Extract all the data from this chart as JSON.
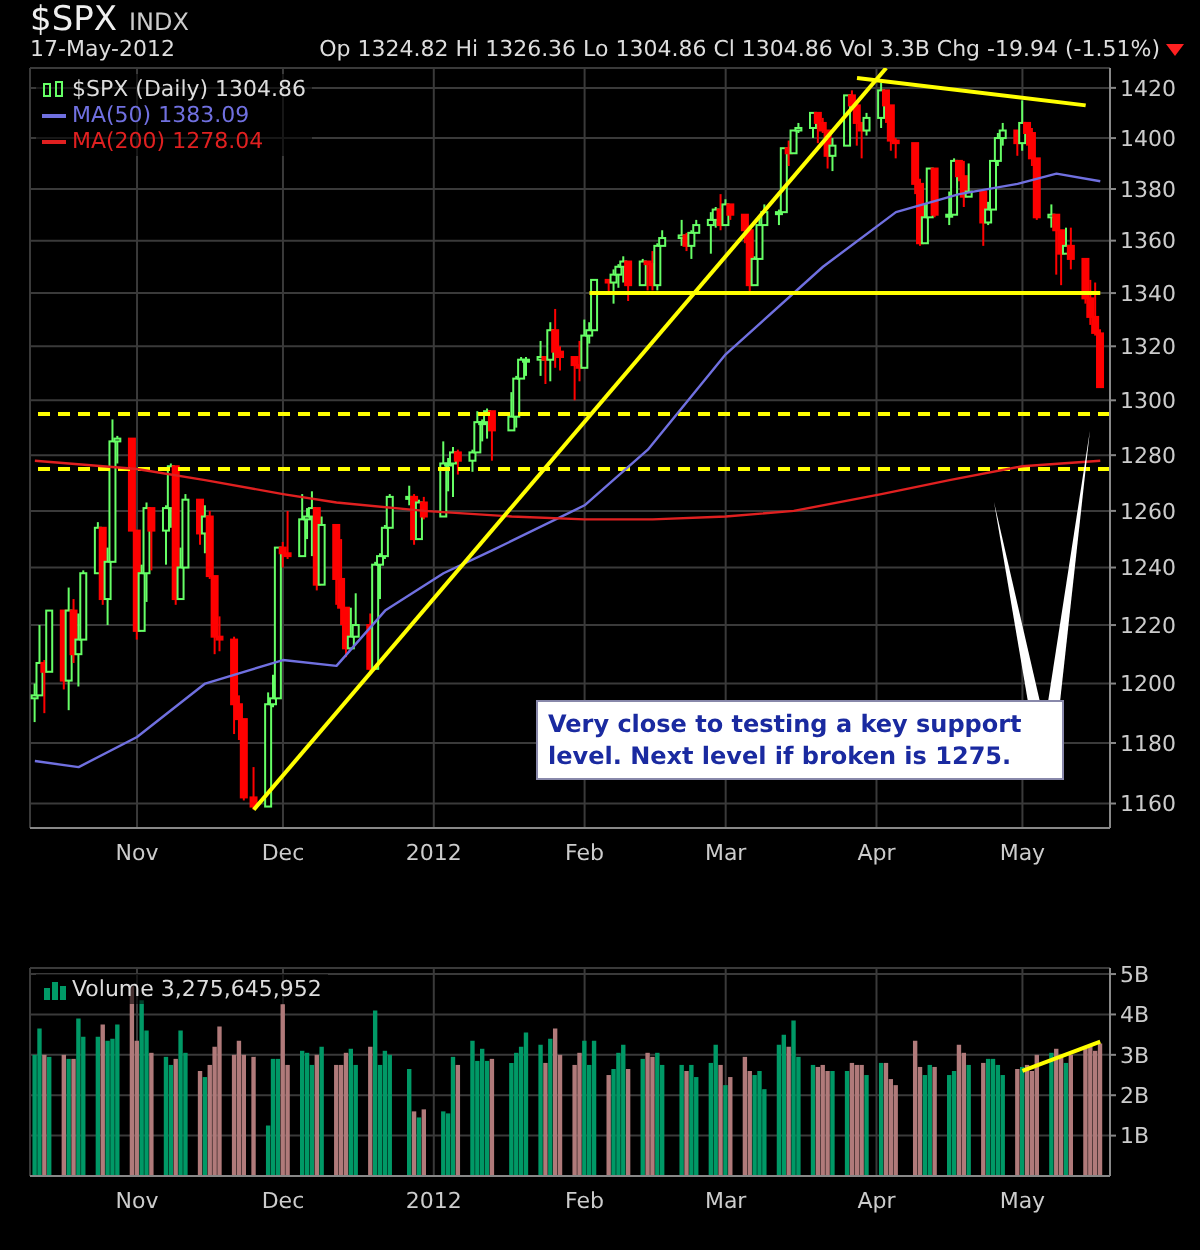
{
  "chart_data": [
    {
      "type": "candlestick",
      "title": "$SPX",
      "subtitle": "INDX",
      "annotations": [
        "17-May-2012",
        "Op 1324.82 Hi 1326.36 Lo 1304.86 Cl 1304.86 Vol 3.3B Chg -19.94 (-1.51%)",
        "Very close to testing a key support level. Next level if broken is 1275."
      ],
      "log": true,
      "grid": true,
      "legend": "top left",
      "xlim": [
        "2011-10-10",
        "2012-05-19"
      ],
      "xticks": [
        {
          "value": "2011-11-01",
          "label": "Nov"
        },
        {
          "value": "2011-12-01",
          "label": "Dec"
        },
        {
          "value": "2012-01-01",
          "label": "2012"
        },
        {
          "value": "2012-02-01",
          "label": "Feb"
        },
        {
          "value": "2012-03-01",
          "label": "Mar"
        },
        {
          "value": "2012-04-01",
          "label": "Apr"
        },
        {
          "value": "2012-05-01",
          "label": "May"
        }
      ],
      "ylim": [
        1152,
        1428
      ],
      "yticks": [
        1160,
        1180,
        1200,
        1220,
        1240,
        1260,
        1280,
        1300,
        1320,
        1340,
        1360,
        1380,
        1400,
        1420
      ],
      "ref_lines": [
        {
          "axis": "y",
          "value": 1295,
          "color": "#ffff00",
          "line_style": "dashed"
        },
        {
          "axis": "y",
          "value": 1275,
          "color": "#ffff00",
          "line_style": "dashed"
        }
      ],
      "series": [
        {
          "type": "candlestick",
          "name": "$SPX (Daily) 1304.86",
          "x": [
            "2011-10-11",
            "2011-10-12",
            "2011-10-13",
            "2011-10-14",
            "2011-10-17",
            "2011-10-18",
            "2011-10-19",
            "2011-10-20",
            "2011-10-21",
            "2011-10-24",
            "2011-10-25",
            "2011-10-26",
            "2011-10-27",
            "2011-10-28",
            "2011-10-31",
            "2011-11-01",
            "2011-11-02",
            "2011-11-03",
            "2011-11-04",
            "2011-11-07",
            "2011-11-08",
            "2011-11-09",
            "2011-11-10",
            "2011-11-11",
            "2011-11-14",
            "2011-11-15",
            "2011-11-16",
            "2011-11-17",
            "2011-11-18",
            "2011-11-21",
            "2011-11-22",
            "2011-11-23",
            "2011-11-25",
            "2011-11-28",
            "2011-11-29",
            "2011-11-30",
            "2011-12-01",
            "2011-12-02",
            "2011-12-05",
            "2011-12-06",
            "2011-12-07",
            "2011-12-08",
            "2011-12-09",
            "2011-12-12",
            "2011-12-13",
            "2011-12-14",
            "2011-12-15",
            "2011-12-16",
            "2011-12-19",
            "2011-12-20",
            "2011-12-21",
            "2011-12-22",
            "2011-12-23",
            "2011-12-27",
            "2011-12-28",
            "2011-12-29",
            "2011-12-30",
            "2012-01-03",
            "2012-01-04",
            "2012-01-05",
            "2012-01-06",
            "2012-01-09",
            "2012-01-10",
            "2012-01-11",
            "2012-01-12",
            "2012-01-13",
            "2012-01-17",
            "2012-01-18",
            "2012-01-19",
            "2012-01-20",
            "2012-01-23",
            "2012-01-24",
            "2012-01-25",
            "2012-01-26",
            "2012-01-27",
            "2012-01-30",
            "2012-01-31",
            "2012-02-01",
            "2012-02-02",
            "2012-02-03",
            "2012-02-06",
            "2012-02-07",
            "2012-02-08",
            "2012-02-09",
            "2012-02-10",
            "2012-02-13",
            "2012-02-14",
            "2012-02-15",
            "2012-02-16",
            "2012-02-17",
            "2012-02-21",
            "2012-02-22",
            "2012-02-23",
            "2012-02-24",
            "2012-02-27",
            "2012-02-28",
            "2012-02-29",
            "2012-03-01",
            "2012-03-02",
            "2012-03-05",
            "2012-03-06",
            "2012-03-07",
            "2012-03-08",
            "2012-03-09",
            "2012-03-12",
            "2012-03-13",
            "2012-03-14",
            "2012-03-15",
            "2012-03-16",
            "2012-03-19",
            "2012-03-20",
            "2012-03-21",
            "2012-03-22",
            "2012-03-23",
            "2012-03-26",
            "2012-03-27",
            "2012-03-28",
            "2012-03-29",
            "2012-03-30",
            "2012-04-02",
            "2012-04-03",
            "2012-04-04",
            "2012-04-05",
            "2012-04-09",
            "2012-04-10",
            "2012-04-11",
            "2012-04-12",
            "2012-04-13",
            "2012-04-16",
            "2012-04-17",
            "2012-04-18",
            "2012-04-19",
            "2012-04-20",
            "2012-04-23",
            "2012-04-24",
            "2012-04-25",
            "2012-04-26",
            "2012-04-27",
            "2012-04-30",
            "2012-05-01",
            "2012-05-02",
            "2012-05-03",
            "2012-05-04",
            "2012-05-07",
            "2012-05-08",
            "2012-05-09",
            "2012-05-10",
            "2012-05-11",
            "2012-05-14",
            "2012-05-15",
            "2012-05-16",
            "2012-05-17"
          ],
          "ohlc": [
            [
              1195,
              1200,
              1187,
              1196
            ],
            [
              1196,
              1220,
              1196,
              1207
            ],
            [
              1207,
              1208,
              1190,
              1204
            ],
            [
              1204,
              1225,
              1204,
              1225
            ],
            [
              1225,
              1225,
              1198,
              1201
            ],
            [
              1201,
              1233,
              1191,
              1225
            ],
            [
              1225,
              1229,
              1207,
              1210
            ],
            [
              1210,
              1224,
              1199,
              1215
            ],
            [
              1215,
              1239,
              1215,
              1238
            ],
            [
              1238,
              1256,
              1238,
              1254
            ],
            [
              1254,
              1254,
              1227,
              1229
            ],
            [
              1229,
              1247,
              1220,
              1242
            ],
            [
              1242,
              1293,
              1242,
              1285
            ],
            [
              1285,
              1287,
              1277,
              1286
            ],
            [
              1286,
              1286,
              1253,
              1253
            ],
            [
              1253,
              1253,
              1215,
              1218
            ],
            [
              1218,
              1241,
              1218,
              1238
            ],
            [
              1238,
              1263,
              1228,
              1261
            ],
            [
              1261,
              1261,
              1239,
              1253
            ],
            [
              1253,
              1262,
              1241,
              1261
            ],
            [
              1261,
              1277,
              1254,
              1276
            ],
            [
              1276,
              1276,
              1227,
              1229
            ],
            [
              1229,
              1247,
              1229,
              1240
            ],
            [
              1240,
              1266,
              1240,
              1264
            ],
            [
              1264,
              1264,
              1248,
              1252
            ],
            [
              1252,
              1262,
              1245,
              1258
            ],
            [
              1258,
              1260,
              1236,
              1237
            ],
            [
              1237,
              1237,
              1210,
              1216
            ],
            [
              1216,
              1223,
              1211,
              1215
            ],
            [
              1215,
              1216,
              1183,
              1193
            ],
            [
              1193,
              1196,
              1181,
              1188
            ],
            [
              1188,
              1188,
              1161,
              1162
            ],
            [
              1162,
              1172,
              1158,
              1159
            ],
            [
              1159,
              1197,
              1159,
              1193
            ],
            [
              1193,
              1203,
              1192,
              1195
            ],
            [
              1195,
              1247,
              1195,
              1247
            ],
            [
              1247,
              1249,
              1240,
              1245
            ],
            [
              1245,
              1260,
              1243,
              1244
            ],
            [
              1244,
              1266,
              1244,
              1257
            ],
            [
              1257,
              1261,
              1250,
              1258
            ],
            [
              1258,
              1267,
              1244,
              1261
            ],
            [
              1261,
              1261,
              1232,
              1234
            ],
            [
              1234,
              1258,
              1234,
              1255
            ],
            [
              1255,
              1255,
              1227,
              1236
            ],
            [
              1236,
              1250,
              1220,
              1226
            ],
            [
              1226,
              1226,
              1209,
              1212
            ],
            [
              1212,
              1226,
              1212,
              1216
            ],
            [
              1216,
              1231,
              1216,
              1220
            ],
            [
              1220,
              1224,
              1203,
              1205
            ],
            [
              1205,
              1242,
              1205,
              1241
            ],
            [
              1241,
              1245,
              1229,
              1244
            ],
            [
              1244,
              1255,
              1243,
              1254
            ],
            [
              1254,
              1266,
              1254,
              1265
            ],
            [
              1265,
              1269,
              1262,
              1265
            ],
            [
              1265,
              1266,
              1248,
              1250
            ],
            [
              1250,
              1264,
              1250,
              1263
            ],
            [
              1263,
              1265,
              1257,
              1258
            ],
            [
              1258,
              1285,
              1258,
              1277
            ],
            [
              1277,
              1279,
              1267,
              1277
            ],
            [
              1277,
              1283,
              1265,
              1281
            ],
            [
              1281,
              1282,
              1273,
              1278
            ],
            [
              1278,
              1282,
              1274,
              1281
            ],
            [
              1281,
              1296,
              1281,
              1292
            ],
            [
              1292,
              1293,
              1285,
              1292
            ],
            [
              1292,
              1297,
              1286,
              1296
            ],
            [
              1296,
              1296,
              1278,
              1289
            ],
            [
              1289,
              1303,
              1289,
              1294
            ],
            [
              1294,
              1309,
              1290,
              1308
            ],
            [
              1308,
              1316,
              1308,
              1315
            ],
            [
              1315,
              1316,
              1309,
              1315
            ],
            [
              1315,
              1322,
              1309,
              1316
            ],
            [
              1316,
              1316,
              1306,
              1315
            ],
            [
              1315,
              1329,
              1307,
              1326
            ],
            [
              1326,
              1334,
              1312,
              1318
            ],
            [
              1318,
              1320,
              1311,
              1316
            ],
            [
              1316,
              1316,
              1300,
              1313
            ],
            [
              1313,
              1322,
              1307,
              1312
            ],
            [
              1312,
              1330,
              1312,
              1324
            ],
            [
              1324,
              1329,
              1321,
              1326
            ],
            [
              1326,
              1345,
              1326,
              1345
            ],
            [
              1345,
              1345,
              1340,
              1344
            ],
            [
              1344,
              1349,
              1336,
              1347
            ],
            [
              1347,
              1351,
              1342,
              1350
            ],
            [
              1350,
              1354,
              1344,
              1352
            ],
            [
              1352,
              1352,
              1337,
              1343
            ],
            [
              1343,
              1353,
              1343,
              1352
            ],
            [
              1352,
              1352,
              1341,
              1351
            ],
            [
              1351,
              1356,
              1341,
              1343
            ],
            [
              1343,
              1359,
              1341,
              1358
            ],
            [
              1358,
              1364,
              1358,
              1361
            ],
            [
              1361,
              1368,
              1358,
              1362
            ],
            [
              1362,
              1363,
              1356,
              1358
            ],
            [
              1358,
              1364,
              1353,
              1363
            ],
            [
              1363,
              1368,
              1363,
              1366
            ],
            [
              1366,
              1371,
              1355,
              1368
            ],
            [
              1368,
              1373,
              1365,
              1372
            ],
            [
              1372,
              1378,
              1364,
              1366
            ],
            [
              1366,
              1376,
              1366,
              1374
            ],
            [
              1374,
              1374,
              1368,
              1370
            ],
            [
              1370,
              1370,
              1359,
              1364
            ],
            [
              1364,
              1364,
              1340,
              1343
            ],
            [
              1343,
              1354,
              1343,
              1353
            ],
            [
              1353,
              1369,
              1353,
              1366
            ],
            [
              1366,
              1374,
              1366,
              1371
            ],
            [
              1371,
              1372,
              1366,
              1371
            ],
            [
              1371,
              1396,
              1371,
              1396
            ],
            [
              1396,
              1399,
              1389,
              1394
            ],
            [
              1394,
              1403,
              1394,
              1403
            ],
            [
              1403,
              1406,
              1402,
              1404
            ],
            [
              1404,
              1410,
              1400,
              1410
            ],
            [
              1410,
              1410,
              1398,
              1406
            ],
            [
              1406,
              1408,
              1402,
              1403
            ],
            [
              1403,
              1403,
              1388,
              1393
            ],
            [
              1393,
              1400,
              1387,
              1397
            ],
            [
              1397,
              1417,
              1397,
              1417
            ],
            [
              1417,
              1419,
              1412,
              1413
            ],
            [
              1413,
              1414,
              1397,
              1406
            ],
            [
              1406,
              1406,
              1392,
              1403
            ],
            [
              1403,
              1410,
              1401,
              1408
            ],
            [
              1408,
              1422,
              1404,
              1419
            ],
            [
              1419,
              1419,
              1406,
              1413
            ],
            [
              1413,
              1413,
              1395,
              1399
            ],
            [
              1399,
              1400,
              1392,
              1398
            ],
            [
              1398,
              1398,
              1378,
              1382
            ],
            [
              1382,
              1384,
              1358,
              1359
            ],
            [
              1359,
              1374,
              1359,
              1369
            ],
            [
              1369,
              1388,
              1369,
              1388
            ],
            [
              1388,
              1388,
              1369,
              1370
            ],
            [
              1370,
              1379,
              1366,
              1370
            ],
            [
              1370,
              1392,
              1370,
              1391
            ],
            [
              1391,
              1391,
              1383,
              1385
            ],
            [
              1385,
              1391,
              1373,
              1377
            ],
            [
              1377,
              1390,
              1377,
              1379
            ],
            [
              1379,
              1379,
              1358,
              1367
            ],
            [
              1367,
              1375,
              1366,
              1372
            ],
            [
              1372,
              1391,
              1372,
              1391
            ],
            [
              1391,
              1402,
              1389,
              1400
            ],
            [
              1400,
              1406,
              1397,
              1403
            ],
            [
              1403,
              1403,
              1393,
              1398
            ],
            [
              1398,
              1415,
              1395,
              1406
            ],
            [
              1406,
              1406,
              1397,
              1402
            ],
            [
              1402,
              1404,
              1389,
              1392
            ],
            [
              1392,
              1392,
              1368,
              1369
            ],
            [
              1369,
              1374,
              1365,
              1370
            ],
            [
              1370,
              1370,
              1347,
              1364
            ],
            [
              1364,
              1364,
              1343,
              1355
            ],
            [
              1355,
              1365,
              1355,
              1358
            ],
            [
              1358,
              1365,
              1349,
              1353
            ],
            [
              1353,
              1353,
              1336,
              1338
            ],
            [
              1338,
              1345,
              1328,
              1331
            ],
            [
              1331,
              1344,
              1324,
              1325
            ],
            [
              1324.82,
              1326.36,
              1304.86,
              1304.86
            ]
          ],
          "colors": [
            "#66ff66",
            "#66ff66",
            "#ff0000",
            "#66ff66",
            "#ff0000",
            "#66ff66",
            "#ff0000",
            "#66ff66",
            "#66ff66",
            "#66ff66",
            "#ff0000",
            "#66ff66",
            "#66ff66",
            "#66ff66",
            "#ff0000",
            "#ff0000",
            "#66ff66",
            "#66ff66",
            "#ff0000",
            "#66ff66",
            "#66ff66",
            "#ff0000",
            "#66ff66",
            "#66ff66",
            "#ff0000",
            "#66ff66",
            "#ff0000",
            "#ff0000",
            "#ff0000",
            "#ff0000",
            "#ff0000",
            "#ff0000",
            "#ff0000",
            "#66ff66",
            "#66ff66",
            "#66ff66",
            "#ff0000",
            "#ff0000",
            "#66ff66",
            "#66ff66",
            "#66ff66",
            "#ff0000",
            "#66ff66",
            "#ff0000",
            "#ff0000",
            "#ff0000",
            "#66ff66",
            "#66ff66",
            "#ff0000",
            "#66ff66",
            "#66ff66",
            "#66ff66",
            "#66ff66",
            "#66ff66",
            "#ff0000",
            "#66ff66",
            "#ff0000",
            "#66ff66",
            "#66ff66",
            "#66ff66",
            "#ff0000",
            "#66ff66",
            "#66ff66",
            "#66ff66",
            "#66ff66",
            "#ff0000",
            "#66ff66",
            "#66ff66",
            "#66ff66",
            "#66ff66",
            "#66ff66",
            "#ff0000",
            "#66ff66",
            "#ff0000",
            "#ff0000",
            "#ff0000",
            "#ff0000",
            "#66ff66",
            "#66ff66",
            "#66ff66",
            "#ff0000",
            "#66ff66",
            "#66ff66",
            "#66ff66",
            "#ff0000",
            "#66ff66",
            "#ff0000",
            "#ff0000",
            "#66ff66",
            "#66ff66",
            "#66ff66",
            "#ff0000",
            "#66ff66",
            "#66ff66",
            "#66ff66",
            "#66ff66",
            "#ff0000",
            "#66ff66",
            "#ff0000",
            "#ff0000",
            "#ff0000",
            "#66ff66",
            "#66ff66",
            "#66ff66",
            "#66ff66",
            "#66ff66",
            "#ff0000",
            "#66ff66",
            "#66ff66",
            "#66ff66",
            "#ff0000",
            "#ff0000",
            "#ff0000",
            "#66ff66",
            "#66ff66",
            "#ff0000",
            "#ff0000",
            "#ff0000",
            "#66ff66",
            "#66ff66",
            "#ff0000",
            "#ff0000",
            "#ff0000",
            "#ff0000",
            "#ff0000",
            "#66ff66",
            "#66ff66",
            "#ff0000",
            "#66ff66",
            "#66ff66",
            "#ff0000",
            "#ff0000",
            "#66ff66",
            "#ff0000",
            "#66ff66",
            "#66ff66",
            "#66ff66",
            "#66ff66",
            "#ff0000",
            "#66ff66",
            "#ff0000",
            "#ff0000",
            "#ff0000",
            "#66ff66",
            "#ff0000",
            "#ff0000",
            "#66ff66",
            "#ff0000",
            "#ff0000",
            "#ff0000",
            "#ff0000",
            "#ff0000"
          ]
        },
        {
          "type": "line",
          "name": "MA(50) 1383.09",
          "color": "#7070e0",
          "x": [
            "2011-10-11",
            "2011-10-20",
            "2011-11-01",
            "2011-11-15",
            "2011-12-01",
            "2011-12-12",
            "2011-12-22",
            "2012-01-03",
            "2012-01-13",
            "2012-02-01",
            "2012-02-14",
            "2012-03-01",
            "2012-03-21",
            "2012-04-05",
            "2012-04-18",
            "2012-04-30",
            "2012-05-08",
            "2012-05-17"
          ],
          "values": [
            1174,
            1172,
            1182,
            1200,
            1208,
            1206,
            1225,
            1238,
            1246,
            1262,
            1282,
            1317,
            1350,
            1371,
            1378,
            1382,
            1386,
            1383
          ]
        },
        {
          "type": "line",
          "name": "MA(200) 1278.04",
          "color": "#e02020",
          "x": [
            "2011-10-11",
            "2011-11-01",
            "2011-11-15",
            "2011-12-01",
            "2011-12-12",
            "2011-12-30",
            "2012-01-17",
            "2012-02-01",
            "2012-02-15",
            "2012-03-01",
            "2012-03-15",
            "2012-04-02",
            "2012-04-16",
            "2012-05-01",
            "2012-05-17"
          ],
          "values": [
            1278,
            1275,
            1271,
            1266,
            1263,
            1260,
            1258,
            1257,
            1257,
            1258,
            1260,
            1266,
            1271,
            1276,
            1278
          ]
        },
        {
          "type": "line",
          "color": "#ffff00",
          "x": [
            "2011-11-25",
            "2012-04-03"
          ],
          "values": [
            1158,
            1428
          ]
        },
        {
          "type": "line",
          "color": "#ffff00",
          "x": [
            "2012-02-02",
            "2012-05-17"
          ],
          "values": [
            1340,
            1340
          ]
        },
        {
          "type": "line",
          "color": "#ffff00",
          "x": [
            "2012-03-28",
            "2012-05-14"
          ],
          "values": [
            1424,
            1413
          ]
        }
      ]
    },
    {
      "type": "bar",
      "grid": true,
      "legend": "top left",
      "xlim": [
        "2011-10-10",
        "2012-05-19"
      ],
      "xticks": [
        {
          "value": "2011-11-01",
          "label": "Nov"
        },
        {
          "value": "2011-12-01",
          "label": "Dec"
        },
        {
          "value": "2012-01-01",
          "label": "2012"
        },
        {
          "value": "2012-02-01",
          "label": "Feb"
        },
        {
          "value": "2012-03-01",
          "label": "Mar"
        },
        {
          "value": "2012-04-01",
          "label": "Apr"
        },
        {
          "value": "2012-05-01",
          "label": "May"
        }
      ],
      "ylim": [
        0,
        5.15
      ],
      "yticks": [
        {
          "value": 1,
          "label": "1B"
        },
        {
          "value": 2,
          "label": "2B"
        },
        {
          "value": 3,
          "label": "3B"
        },
        {
          "value": 4,
          "label": "4B"
        },
        {
          "value": 5,
          "label": "5B"
        }
      ],
      "series": [
        {
          "type": "bar",
          "name": "Volume 3,275,645,952",
          "x": [
            "2011-10-11",
            "2011-10-12",
            "2011-10-13",
            "2011-10-14",
            "2011-10-17",
            "2011-10-18",
            "2011-10-19",
            "2011-10-20",
            "2011-10-21",
            "2011-10-24",
            "2011-10-25",
            "2011-10-26",
            "2011-10-27",
            "2011-10-28",
            "2011-10-31",
            "2011-11-01",
            "2011-11-02",
            "2011-11-03",
            "2011-11-04",
            "2011-11-07",
            "2011-11-08",
            "2011-11-09",
            "2011-11-10",
            "2011-11-11",
            "2011-11-14",
            "2011-11-15",
            "2011-11-16",
            "2011-11-17",
            "2011-11-18",
            "2011-11-21",
            "2011-11-22",
            "2011-11-23",
            "2011-11-25",
            "2011-11-28",
            "2011-11-29",
            "2011-11-30",
            "2011-12-01",
            "2011-12-02",
            "2011-12-05",
            "2011-12-06",
            "2011-12-07",
            "2011-12-08",
            "2011-12-09",
            "2011-12-12",
            "2011-12-13",
            "2011-12-14",
            "2011-12-15",
            "2011-12-16",
            "2011-12-19",
            "2011-12-20",
            "2011-12-21",
            "2011-12-22",
            "2011-12-23",
            "2011-12-27",
            "2011-12-28",
            "2011-12-29",
            "2011-12-30",
            "2012-01-03",
            "2012-01-04",
            "2012-01-05",
            "2012-01-06",
            "2012-01-09",
            "2012-01-10",
            "2012-01-11",
            "2012-01-12",
            "2012-01-13",
            "2012-01-17",
            "2012-01-18",
            "2012-01-19",
            "2012-01-20",
            "2012-01-23",
            "2012-01-24",
            "2012-01-25",
            "2012-01-26",
            "2012-01-27",
            "2012-01-30",
            "2012-01-31",
            "2012-02-01",
            "2012-02-02",
            "2012-02-03",
            "2012-02-06",
            "2012-02-07",
            "2012-02-08",
            "2012-02-09",
            "2012-02-10",
            "2012-02-13",
            "2012-02-14",
            "2012-02-15",
            "2012-02-16",
            "2012-02-17",
            "2012-02-21",
            "2012-02-22",
            "2012-02-23",
            "2012-02-24",
            "2012-02-27",
            "2012-02-28",
            "2012-02-29",
            "2012-03-01",
            "2012-03-02",
            "2012-03-05",
            "2012-03-06",
            "2012-03-07",
            "2012-03-08",
            "2012-03-09",
            "2012-03-12",
            "2012-03-13",
            "2012-03-14",
            "2012-03-15",
            "2012-03-16",
            "2012-03-19",
            "2012-03-20",
            "2012-03-21",
            "2012-03-22",
            "2012-03-23",
            "2012-03-26",
            "2012-03-27",
            "2012-03-28",
            "2012-03-29",
            "2012-03-30",
            "2012-04-02",
            "2012-04-03",
            "2012-04-04",
            "2012-04-05",
            "2012-04-09",
            "2012-04-10",
            "2012-04-11",
            "2012-04-12",
            "2012-04-13",
            "2012-04-16",
            "2012-04-17",
            "2012-04-18",
            "2012-04-19",
            "2012-04-20",
            "2012-04-23",
            "2012-04-24",
            "2012-04-25",
            "2012-04-26",
            "2012-04-27",
            "2012-04-30",
            "2012-05-01",
            "2012-05-02",
            "2012-05-03",
            "2012-05-04",
            "2012-05-07",
            "2012-05-08",
            "2012-05-09",
            "2012-05-10",
            "2012-05-11",
            "2012-05-14",
            "2012-05-15",
            "2012-05-16",
            "2012-05-17"
          ],
          "values": [
            3.0,
            3.65,
            3.0,
            2.95,
            3.0,
            2.9,
            2.9,
            3.9,
            3.45,
            3.45,
            3.75,
            3.35,
            3.4,
            3.75,
            4.7,
            3.35,
            4.35,
            3.6,
            3.05,
            2.95,
            2.75,
            2.9,
            3.6,
            3.05,
            2.6,
            2.45,
            2.75,
            3.2,
            3.7,
            3.0,
            3.35,
            3.0,
            2.95,
            1.25,
            2.9,
            2.9,
            4.25,
            2.75,
            3.1,
            3.05,
            2.75,
            3.0,
            3.2,
            2.75,
            2.75,
            3.05,
            3.15,
            2.75,
            3.2,
            4.1,
            2.75,
            3.1,
            3.0,
            2.65,
            1.6,
            1.45,
            1.65,
            1.6,
            1.55,
            2.95,
            2.75,
            3.35,
            2.85,
            3.15,
            2.85,
            2.9,
            2.8,
            3.05,
            3.2,
            3.55,
            3.25,
            2.8,
            3.4,
            3.65,
            3.0,
            2.75,
            3.05,
            3.35,
            2.75,
            3.35,
            2.5,
            2.65,
            3.05,
            3.25,
            2.65,
            2.9,
            3.05,
            2.95,
            3.05,
            2.75,
            2.75,
            2.6,
            2.75,
            2.45,
            2.8,
            3.25,
            2.75,
            2.25,
            2.45,
            2.95,
            2.6,
            2.5,
            2.6,
            2.15,
            3.25,
            3.5,
            3.2,
            3.85,
            2.95,
            2.75,
            2.7,
            2.75,
            2.6,
            2.6,
            2.6,
            2.8,
            2.75,
            2.75,
            2.5,
            2.8,
            2.8,
            2.4,
            2.25,
            3.35,
            2.7,
            2.5,
            2.75,
            2.7,
            2.5,
            2.6,
            3.25,
            3.05,
            2.75,
            2.8,
            2.9,
            2.9,
            2.75,
            2.5,
            2.65,
            2.7,
            2.75,
            2.6,
            3.0,
            3.05,
            3.15,
            3.0,
            2.8,
            3.0,
            3.2,
            3.25,
            3.1,
            3.28
          ],
          "colors": [
            "#009966",
            "#009966",
            "#b07a7a",
            "#009966",
            "#b07a7a",
            "#009966",
            "#b07a7a",
            "#009966",
            "#009966",
            "#009966",
            "#b07a7a",
            "#009966",
            "#009966",
            "#009966",
            "#b07a7a",
            "#b07a7a",
            "#009966",
            "#009966",
            "#b07a7a",
            "#009966",
            "#009966",
            "#b07a7a",
            "#009966",
            "#009966",
            "#b07a7a",
            "#009966",
            "#b07a7a",
            "#b07a7a",
            "#b07a7a",
            "#b07a7a",
            "#b07a7a",
            "#b07a7a",
            "#b07a7a",
            "#009966",
            "#009966",
            "#009966",
            "#b07a7a",
            "#b07a7a",
            "#009966",
            "#009966",
            "#009966",
            "#b07a7a",
            "#009966",
            "#b07a7a",
            "#b07a7a",
            "#b07a7a",
            "#009966",
            "#009966",
            "#b07a7a",
            "#009966",
            "#009966",
            "#009966",
            "#009966",
            "#009966",
            "#b07a7a",
            "#009966",
            "#b07a7a",
            "#009966",
            "#009966",
            "#009966",
            "#b07a7a",
            "#009966",
            "#009966",
            "#009966",
            "#009966",
            "#b07a7a",
            "#009966",
            "#009966",
            "#009966",
            "#009966",
            "#009966",
            "#b07a7a",
            "#009966",
            "#b07a7a",
            "#b07a7a",
            "#b07a7a",
            "#b07a7a",
            "#009966",
            "#009966",
            "#009966",
            "#b07a7a",
            "#009966",
            "#009966",
            "#009966",
            "#b07a7a",
            "#009966",
            "#b07a7a",
            "#b07a7a",
            "#009966",
            "#009966",
            "#009966",
            "#b07a7a",
            "#009966",
            "#009966",
            "#009966",
            "#009966",
            "#b07a7a",
            "#009966",
            "#b07a7a",
            "#b07a7a",
            "#b07a7a",
            "#009966",
            "#009966",
            "#009966",
            "#009966",
            "#009966",
            "#b07a7a",
            "#009966",
            "#009966",
            "#009966",
            "#b07a7a",
            "#b07a7a",
            "#b07a7a",
            "#009966",
            "#009966",
            "#b07a7a",
            "#b07a7a",
            "#b07a7a",
            "#009966",
            "#009966",
            "#b07a7a",
            "#b07a7a",
            "#b07a7a",
            "#b07a7a",
            "#b07a7a",
            "#009966",
            "#009966",
            "#b07a7a",
            "#009966",
            "#009966",
            "#b07a7a",
            "#b07a7a",
            "#009966",
            "#b07a7a",
            "#009966",
            "#009966",
            "#009966",
            "#009966",
            "#b07a7a",
            "#009966",
            "#b07a7a",
            "#b07a7a",
            "#b07a7a",
            "#009966",
            "#b07a7a",
            "#b07a7a",
            "#009966",
            "#b07a7a",
            "#b07a7a",
            "#b07a7a",
            "#b07a7a",
            "#b07a7a"
          ]
        },
        {
          "type": "line",
          "color": "#ffff00",
          "x": [
            "2012-05-01",
            "2012-05-17"
          ],
          "values": [
            2.6,
            3.33
          ]
        }
      ]
    }
  ]
}
